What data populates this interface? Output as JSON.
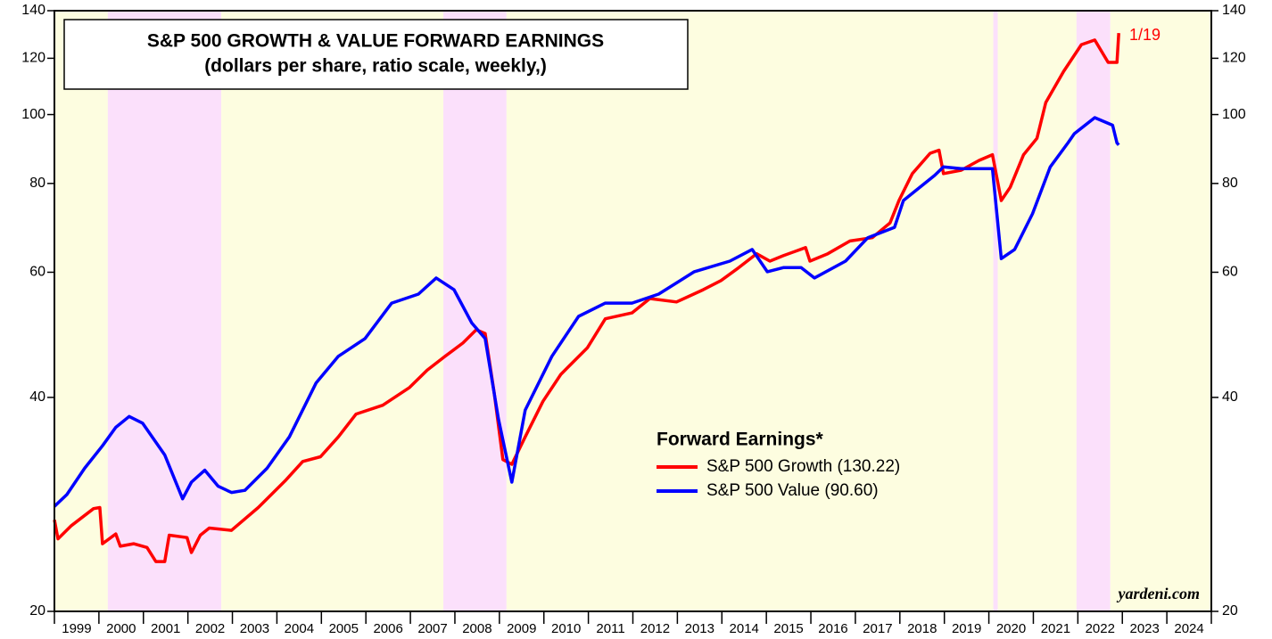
{
  "chart_data": {
    "type": "line",
    "title": "S&P 500 GROWTH & VALUE FORWARD EARNINGS",
    "subtitle": "(dollars per share, ratio scale, weekly,)",
    "legend_title": "Forward Earnings*",
    "annotation": "1/19",
    "source": "yardeni.com",
    "log_scale": true,
    "ylim": [
      20,
      140
    ],
    "yticks": [
      20,
      40,
      60,
      80,
      100,
      120,
      140
    ],
    "xlim": [
      1999,
      2025
    ],
    "categories": [
      "1999",
      "2000",
      "2001",
      "2002",
      "2003",
      "2004",
      "2005",
      "2006",
      "2007",
      "2008",
      "2009",
      "2010",
      "2011",
      "2012",
      "2013",
      "2014",
      "2015",
      "2016",
      "2017",
      "2018",
      "2019",
      "2020",
      "2021",
      "2022",
      "2023",
      "2024"
    ],
    "shading": [
      {
        "x0": 1999,
        "x1": 2000.2,
        "color": "#fdfde0"
      },
      {
        "x0": 2000.2,
        "x1": 2002.75,
        "color": "#fbe0fb"
      },
      {
        "x0": 2002.75,
        "x1": 2007.74,
        "color": "#fdfde0"
      },
      {
        "x0": 2007.74,
        "x1": 2009.16,
        "color": "#fbe0fb"
      },
      {
        "x0": 2009.16,
        "x1": 2020.1,
        "color": "#fdfde0"
      },
      {
        "x0": 2020.1,
        "x1": 2020.2,
        "color": "#fbe0fb"
      },
      {
        "x0": 2020.2,
        "x1": 2021.97,
        "color": "#fdfde0"
      },
      {
        "x0": 2021.97,
        "x1": 2022.73,
        "color": "#fbe0fb"
      },
      {
        "x0": 2022.73,
        "x1": 2025,
        "color": "#fdfde0"
      }
    ],
    "series": [
      {
        "name": "S&P 500 Growth (130.22)",
        "color": "#ff0000",
        "x": [
          1999.0,
          1999.08,
          1999.38,
          1999.88,
          2000.02,
          2000.08,
          2000.38,
          2000.48,
          2000.78,
          2001.08,
          2001.28,
          2001.48,
          2001.58,
          2001.98,
          2002.08,
          2002.28,
          2002.48,
          2002.98,
          2003.58,
          2004.18,
          2004.58,
          2004.98,
          2005.38,
          2005.78,
          2006.38,
          2006.98,
          2007.38,
          2007.78,
          2008.18,
          2008.48,
          2008.68,
          2008.88,
          2009.08,
          2009.28,
          2009.58,
          2009.98,
          2010.38,
          2010.98,
          2011.38,
          2011.98,
          2012.38,
          2012.98,
          2013.58,
          2013.98,
          2014.38,
          2014.78,
          2015.08,
          2015.38,
          2015.88,
          2015.98,
          2016.38,
          2016.88,
          2017.38,
          2017.78,
          2017.98,
          2018.28,
          2018.68,
          2018.88,
          2018.98,
          2019.38,
          2019.78,
          2020.08,
          2020.28,
          2020.48,
          2020.78,
          2021.08,
          2021.28,
          2021.68,
          2022.08,
          2022.38,
          2022.68,
          2022.88,
          2022.92
        ],
        "values": [
          26.9,
          25.3,
          26.4,
          27.9,
          28.0,
          24.9,
          25.7,
          24.7,
          24.9,
          24.6,
          23.5,
          23.5,
          25.6,
          25.4,
          24.2,
          25.6,
          26.2,
          26.0,
          28.0,
          30.5,
          32.5,
          33.0,
          35.2,
          37.9,
          39.0,
          41.3,
          43.7,
          45.7,
          47.7,
          49.8,
          49.2,
          40.7,
          32.7,
          32.2,
          35.2,
          39.5,
          43.1,
          47.0,
          51.6,
          52.6,
          55.1,
          54.5,
          56.7,
          58.4,
          60.9,
          63.7,
          62.2,
          63.3,
          65.0,
          62.2,
          63.7,
          66.4,
          67.1,
          70.4,
          75.7,
          82.6,
          88.2,
          89.1,
          82.6,
          83.5,
          86.2,
          87.8,
          75.7,
          79.0,
          87.8,
          92.6,
          104,
          115,
          125.4,
          127.3,
          118.4,
          118.4,
          130.22
        ]
      },
      {
        "name": "S&P 500 Value (90.60)",
        "color": "#0000ff",
        "x": [
          1999.0,
          1999.28,
          1999.68,
          2000.08,
          2000.38,
          2000.68,
          2000.98,
          2001.48,
          2001.88,
          2002.08,
          2002.38,
          2002.68,
          2002.98,
          2003.28,
          2003.78,
          2004.28,
          2004.88,
          2005.38,
          2005.98,
          2006.58,
          2007.18,
          2007.58,
          2007.98,
          2008.38,
          2008.68,
          2008.98,
          2009.28,
          2009.58,
          2010.18,
          2010.78,
          2011.38,
          2011.98,
          2012.58,
          2013.38,
          2014.18,
          2014.68,
          2015.02,
          2015.38,
          2015.78,
          2016.08,
          2016.78,
          2017.28,
          2017.88,
          2018.08,
          2018.78,
          2018.98,
          2019.38,
          2020.08,
          2020.28,
          2020.58,
          2020.98,
          2021.38,
          2021.78,
          2021.92,
          2022.38,
          2022.78,
          2022.88,
          2022.92
        ],
        "values": [
          28.1,
          29.2,
          31.8,
          34.2,
          36.3,
          37.6,
          36.8,
          33.2,
          28.8,
          30.4,
          31.6,
          30.0,
          29.4,
          29.6,
          31.8,
          35.2,
          41.9,
          45.7,
          48.4,
          54.3,
          55.9,
          58.9,
          56.7,
          50.9,
          48.4,
          37.3,
          30.4,
          38.4,
          45.7,
          52.0,
          54.3,
          54.3,
          55.9,
          60.1,
          62.2,
          64.6,
          60.1,
          60.9,
          60.9,
          58.9,
          62.2,
          67.1,
          69.4,
          75.7,
          82.1,
          84.4,
          83.9,
          83.9,
          62.7,
          64.6,
          72.5,
          84.4,
          91.3,
          94.0,
          99.0,
          96.6,
          91.2,
          90.6
        ]
      }
    ]
  }
}
